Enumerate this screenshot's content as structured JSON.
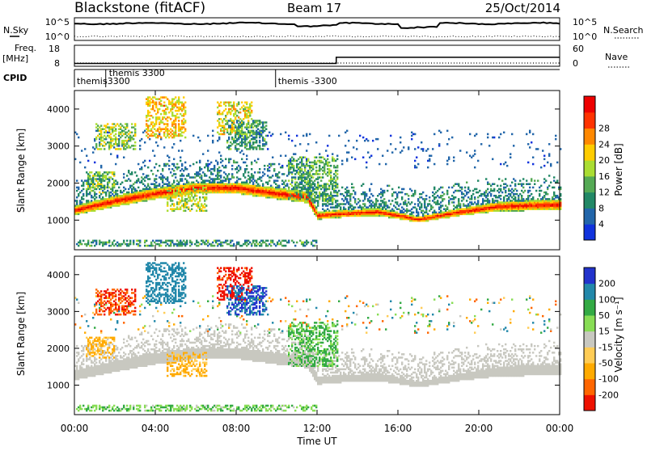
{
  "header": {
    "station": "Blackstone (fitACF)",
    "beam": "Beam 17",
    "date": "25/Oct/2014"
  },
  "noise_panel": {
    "left_label": "N.Sky",
    "right_label": "N.Search",
    "ticks": [
      "10^5",
      "10^0"
    ],
    "right_ticks": [
      "10^5",
      "10^0"
    ]
  },
  "freq_panel": {
    "left_label_1": "Freq.",
    "left_label_2": "[MHz]",
    "left_ticks": [
      "18",
      "8"
    ],
    "right_ticks": [
      "60",
      "0"
    ],
    "right_label": "Nave",
    "step_value_before": 8.3,
    "step_value_after": 12.5,
    "step_time_hours": 12.95
  },
  "cpid_panel": {
    "label": "CPID",
    "entries": [
      {
        "time_hours": 0.0,
        "text1": "themis",
        "text2": ""
      },
      {
        "time_hours": 1.55,
        "text1": "themis 3300",
        "text2": "-3300"
      },
      {
        "time_hours": 9.95,
        "text1": "themis -3300",
        "text2": ""
      }
    ]
  },
  "power_panel": {
    "ylabel": "Slant Range [km]",
    "yticks": [
      "1000",
      "2000",
      "3000",
      "4000"
    ],
    "colorbar_label": "Power [dB]",
    "colorbar_ticks": [
      "4",
      "8",
      "12",
      "16",
      "20",
      "24",
      "28"
    ],
    "colors": [
      "#1133dd",
      "#2266aa",
      "#228866",
      "#55aa55",
      "#aadd33",
      "#ffcc00",
      "#ff8800",
      "#ff3300",
      "#ee0000"
    ]
  },
  "velocity_panel": {
    "ylabel": "Slant Range [km]",
    "yticks": [
      "1000",
      "2000",
      "3000",
      "4000"
    ],
    "colorbar_label": "Velocity [m s⁻¹]",
    "colorbar_ticks": [
      "200",
      "100",
      "50",
      "15",
      "-15",
      "-50",
      "-100",
      "-200"
    ],
    "colors": [
      "#2233cc",
      "#2288aa",
      "#33aa44",
      "#88dd55",
      "#c8c8c0",
      "#ffcc55",
      "#ffaa00",
      "#ff6600",
      "#ee1100"
    ]
  },
  "xaxis": {
    "label": "Time UT",
    "ticks": [
      "00:00",
      "04:00",
      "08:00",
      "12:00",
      "16:00",
      "20:00",
      "00:00"
    ]
  },
  "chart_data": {
    "type": "heatmap",
    "title": "Blackstone (fitACF)",
    "xlabel": "Time UT",
    "ylabel": "Slant Range [km]",
    "xlim": [
      0,
      24
    ],
    "ylim": [
      200,
      4500
    ],
    "x_unit": "hours UT",
    "power_scale_db": [
      0,
      32
    ],
    "velocity_scale": [
      -250,
      250
    ],
    "ground_scatter_band": [
      {
        "t": 0,
        "range_km": 1250,
        "width_km": 250
      },
      {
        "t": 2,
        "range_km": 1500,
        "width_km": 300
      },
      {
        "t": 4,
        "range_km": 1700,
        "width_km": 300
      },
      {
        "t": 6,
        "range_km": 1850,
        "width_km": 300
      },
      {
        "t": 8,
        "range_km": 1850,
        "width_km": 300
      },
      {
        "t": 10,
        "range_km": 1700,
        "width_km": 300
      },
      {
        "t": 11.5,
        "range_km": 1600,
        "width_km": 300
      },
      {
        "t": 12,
        "range_km": 1100,
        "width_km": 200
      },
      {
        "t": 13,
        "range_km": 1150,
        "width_km": 200
      },
      {
        "t": 15,
        "range_km": 1200,
        "width_km": 200
      },
      {
        "t": 17,
        "range_km": 1000,
        "width_km": 150
      },
      {
        "t": 19,
        "range_km": 1200,
        "width_km": 200
      },
      {
        "t": 21,
        "range_km": 1350,
        "width_km": 250
      },
      {
        "t": 24,
        "range_km": 1400,
        "width_km": 300
      }
    ],
    "scatter_regions": [
      {
        "t0": 3.5,
        "t1": 5.5,
        "r0": 3200,
        "r1": 4300,
        "power_db": 20,
        "velocity": 150
      },
      {
        "t0": 7.0,
        "t1": 8.8,
        "r0": 3300,
        "r1": 4200,
        "power_db": 18,
        "velocity": -220
      },
      {
        "t0": 7.5,
        "t1": 9.5,
        "r0": 2900,
        "r1": 3700,
        "power_db": 10,
        "velocity": 200
      },
      {
        "t0": 1.0,
        "t1": 3.0,
        "r0": 2900,
        "r1": 3600,
        "power_db": 15,
        "velocity": -200
      },
      {
        "t0": 10.5,
        "t1": 13.0,
        "r0": 1500,
        "r1": 2700,
        "power_db": 12,
        "velocity": 60
      },
      {
        "t0": 4.5,
        "t1": 6.5,
        "r0": 1200,
        "r1": 1900,
        "power_db": 16,
        "velocity": -60
      },
      {
        "t0": 0.5,
        "t1": 2.0,
        "r0": 1700,
        "r1": 2300,
        "power_db": 14,
        "velocity": -60
      },
      {
        "t0": 0,
        "t1": 12,
        "r0": 250,
        "r1": 450,
        "power_db": 10,
        "velocity": 40
      }
    ]
  }
}
